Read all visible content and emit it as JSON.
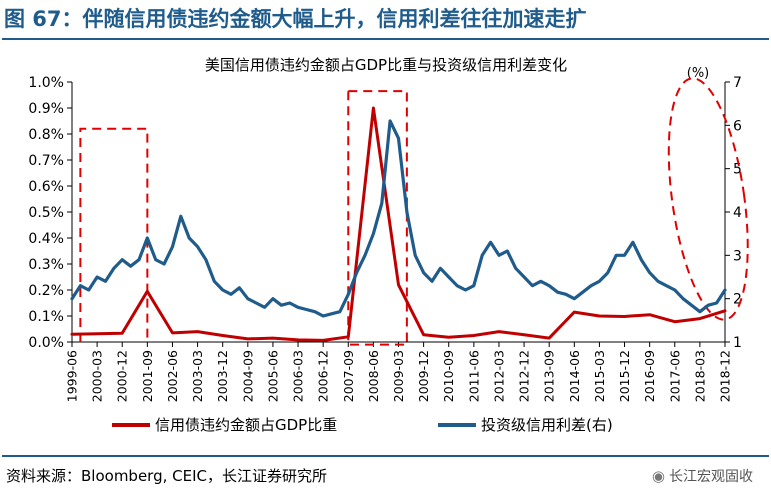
{
  "figure": {
    "title": "图 67：伴随信用债违约金额大幅上升，信用利差往往加速走扩",
    "source": "资料来源：Bloomberg, CEIC，长江证券研究所",
    "watermark": "长江宏观固收",
    "watermark_icon": "wechat-icon"
  },
  "chart_data": {
    "type": "line",
    "title": "美国信用债违约金额占GDP比重与投资级信用利差变化",
    "ylabel_right": "(%)",
    "x_tick_labels": [
      "1999-06",
      "2000-03",
      "2000-12",
      "2001-09",
      "2002-06",
      "2003-03",
      "2003-12",
      "2004-09",
      "2005-06",
      "2006-03",
      "2006-12",
      "2007-09",
      "2008-06",
      "2009-03",
      "2009-12",
      "2010-09",
      "2011-06",
      "2012-03",
      "2012-12",
      "2013-09",
      "2014-06",
      "2015-03",
      "2015-12",
      "2016-09",
      "2017-06",
      "2018-03",
      "2018-12"
    ],
    "y_left": {
      "lim": [
        0,
        1.0
      ],
      "ticks": [
        "0.0%",
        "0.1%",
        "0.2%",
        "0.3%",
        "0.4%",
        "0.5%",
        "0.6%",
        "0.7%",
        "0.8%",
        "0.9%",
        "1.0%"
      ]
    },
    "y_right": {
      "lim": [
        1,
        7
      ],
      "ticks": [
        "1",
        "2",
        "3",
        "4",
        "5",
        "6",
        "7"
      ]
    },
    "grid": false,
    "legend_position": "bottom",
    "colors": {
      "default_ratio": "#c00000",
      "ig_spread": "#1f5c8c",
      "highlight": "#e00000"
    },
    "series": [
      {
        "name": "信用债违约金额占GDP比重",
        "axis": "left",
        "color": "#c00000",
        "points": [
          [
            "1999-06",
            0.03
          ],
          [
            "2000-03",
            0.032
          ],
          [
            "2000-12",
            0.034
          ],
          [
            "2001-09",
            0.195
          ],
          [
            "2002-06",
            0.035
          ],
          [
            "2003-03",
            0.04
          ],
          [
            "2003-12",
            0.025
          ],
          [
            "2004-09",
            0.012
          ],
          [
            "2005-06",
            0.015
          ],
          [
            "2006-03",
            0.008
          ],
          [
            "2006-12",
            0.006
          ],
          [
            "2007-09",
            0.02
          ],
          [
            "2008-06",
            0.9
          ],
          [
            "2009-03",
            0.22
          ],
          [
            "2009-12",
            0.028
          ],
          [
            "2010-09",
            0.018
          ],
          [
            "2011-06",
            0.025
          ],
          [
            "2012-03",
            0.04
          ],
          [
            "2012-12",
            0.028
          ],
          [
            "2013-09",
            0.015
          ],
          [
            "2014-06",
            0.115
          ],
          [
            "2015-03",
            0.1
          ],
          [
            "2015-12",
            0.098
          ],
          [
            "2016-09",
            0.105
          ],
          [
            "2017-06",
            0.078
          ],
          [
            "2018-03",
            0.09
          ],
          [
            "2018-12",
            0.12
          ]
        ]
      },
      {
        "name": "投资级信用利差(右)",
        "axis": "right",
        "color": "#1f5c8c",
        "points": [
          [
            "1999-06",
            2.0
          ],
          [
            "1999-09",
            2.3
          ],
          [
            "1999-12",
            2.2
          ],
          [
            "2000-03",
            2.5
          ],
          [
            "2000-06",
            2.4
          ],
          [
            "2000-09",
            2.7
          ],
          [
            "2000-12",
            2.9
          ],
          [
            "2001-03",
            2.75
          ],
          [
            "2001-06",
            2.9
          ],
          [
            "2001-09",
            3.4
          ],
          [
            "2001-12",
            2.9
          ],
          [
            "2002-03",
            2.8
          ],
          [
            "2002-06",
            3.2
          ],
          [
            "2002-09",
            3.9
          ],
          [
            "2002-12",
            3.4
          ],
          [
            "2003-03",
            3.2
          ],
          [
            "2003-06",
            2.9
          ],
          [
            "2003-09",
            2.4
          ],
          [
            "2003-12",
            2.2
          ],
          [
            "2004-03",
            2.1
          ],
          [
            "2004-06",
            2.25
          ],
          [
            "2004-09",
            2.0
          ],
          [
            "2004-12",
            1.9
          ],
          [
            "2005-03",
            1.8
          ],
          [
            "2005-06",
            2.0
          ],
          [
            "2005-09",
            1.85
          ],
          [
            "2005-12",
            1.9
          ],
          [
            "2006-03",
            1.8
          ],
          [
            "2006-06",
            1.75
          ],
          [
            "2006-09",
            1.7
          ],
          [
            "2006-12",
            1.6
          ],
          [
            "2007-03",
            1.65
          ],
          [
            "2007-06",
            1.7
          ],
          [
            "2007-09",
            2.1
          ],
          [
            "2007-12",
            2.6
          ],
          [
            "2008-03",
            3.0
          ],
          [
            "2008-06",
            3.5
          ],
          [
            "2008-09",
            4.2
          ],
          [
            "2008-12",
            6.1
          ],
          [
            "2009-03",
            5.7
          ],
          [
            "2009-06",
            4.0
          ],
          [
            "2009-09",
            3.0
          ],
          [
            "2009-12",
            2.6
          ],
          [
            "2010-03",
            2.4
          ],
          [
            "2010-06",
            2.7
          ],
          [
            "2010-09",
            2.5
          ],
          [
            "2010-12",
            2.3
          ],
          [
            "2011-03",
            2.2
          ],
          [
            "2011-06",
            2.3
          ],
          [
            "2011-09",
            3.0
          ],
          [
            "2011-12",
            3.3
          ],
          [
            "2012-03",
            3.0
          ],
          [
            "2012-06",
            3.1
          ],
          [
            "2012-09",
            2.7
          ],
          [
            "2012-12",
            2.5
          ],
          [
            "2013-03",
            2.3
          ],
          [
            "2013-06",
            2.4
          ],
          [
            "2013-09",
            2.3
          ],
          [
            "2013-12",
            2.15
          ],
          [
            "2014-03",
            2.1
          ],
          [
            "2014-06",
            2.0
          ],
          [
            "2014-09",
            2.15
          ],
          [
            "2014-12",
            2.3
          ],
          [
            "2015-03",
            2.4
          ],
          [
            "2015-06",
            2.6
          ],
          [
            "2015-09",
            3.0
          ],
          [
            "2015-12",
            3.0
          ],
          [
            "2016-03",
            3.3
          ],
          [
            "2016-06",
            2.9
          ],
          [
            "2016-09",
            2.6
          ],
          [
            "2016-12",
            2.4
          ],
          [
            "2017-03",
            2.3
          ],
          [
            "2017-06",
            2.2
          ],
          [
            "2017-09",
            2.0
          ],
          [
            "2017-12",
            1.85
          ],
          [
            "2018-03",
            1.7
          ],
          [
            "2018-06",
            1.85
          ],
          [
            "2018-09",
            1.9
          ],
          [
            "2018-12",
            2.2
          ]
        ]
      }
    ]
  }
}
